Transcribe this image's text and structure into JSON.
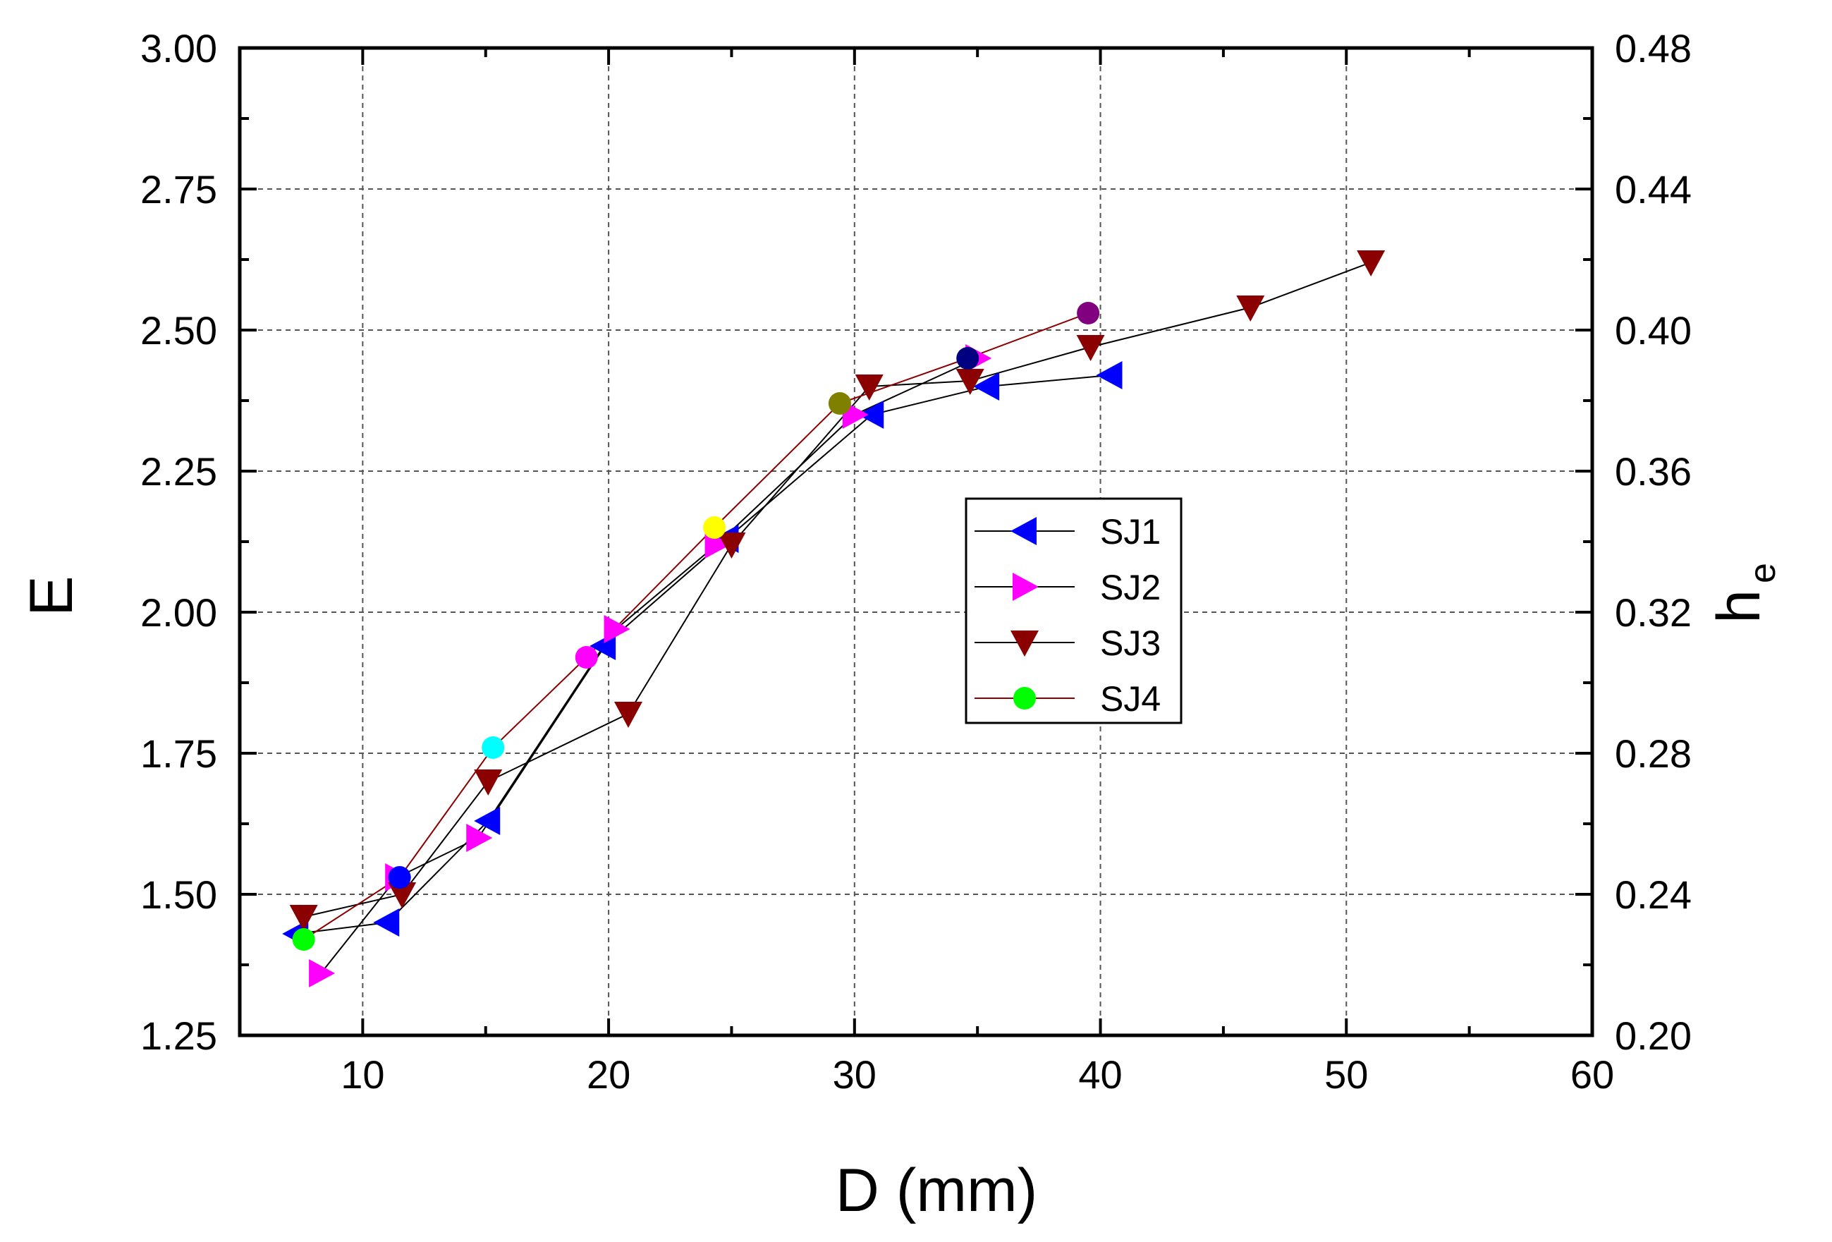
{
  "chart_data": {
    "type": "scatter",
    "xlabel": "D (mm)",
    "ylabel": "E",
    "y2label": {
      "main": "h",
      "sub": "e"
    },
    "xlim": [
      5,
      60
    ],
    "ylim": [
      1.25,
      3.0
    ],
    "y2lim": [
      0.2,
      0.48
    ],
    "x_ticks": [
      "10",
      "20",
      "30",
      "40",
      "50",
      "60"
    ],
    "y_ticks": [
      "1.25",
      "1.50",
      "1.75",
      "2.00",
      "2.25",
      "2.50",
      "2.75",
      "3.00"
    ],
    "y2_ticks": [
      "0.20",
      "0.24",
      "0.28",
      "0.32",
      "0.36",
      "0.40",
      "0.44",
      "0.48"
    ],
    "grid": true,
    "legend_position": "center-right",
    "series": [
      {
        "name": "SJ1",
        "marker": "triangle-left",
        "color": "#0000ff",
        "line_color": "#000000",
        "x": [
          7.3,
          11.0,
          15.1,
          19.8,
          24.8,
          30.7,
          35.4,
          40.4
        ],
        "y": [
          1.43,
          1.45,
          1.63,
          1.94,
          2.13,
          2.35,
          2.4,
          2.42
        ]
      },
      {
        "name": "SJ2",
        "marker": "triangle-right",
        "color": "#ff00ff",
        "line_color": "#000000",
        "x": [
          8.3,
          11.4,
          14.7,
          20.3,
          24.4,
          30.0,
          35.0
        ],
        "y": [
          1.36,
          1.53,
          1.6,
          1.97,
          2.12,
          2.35,
          2.45
        ]
      },
      {
        "name": "SJ3",
        "marker": "triangle-down",
        "color": "#8b0000",
        "line_color": "#000000",
        "x": [
          7.6,
          11.6,
          15.1,
          20.8,
          25.0,
          30.6,
          34.7,
          39.6,
          46.1,
          51.0
        ],
        "y": [
          1.46,
          1.5,
          1.7,
          1.82,
          2.12,
          2.4,
          2.41,
          2.47,
          2.54,
          2.62
        ]
      },
      {
        "name": "SJ4",
        "marker": "circle",
        "color": "#00ff00",
        "line_color": "#8b0000",
        "x": [
          7.6,
          11.5,
          15.3,
          19.1,
          24.3,
          29.4,
          34.6,
          39.5
        ],
        "y": [
          1.42,
          1.53,
          1.76,
          1.92,
          2.15,
          2.37,
          2.45,
          2.53
        ],
        "point_colors": [
          "#00ff00",
          "#0000ff",
          "#00ffff",
          "#ff00ff",
          "#ffff00",
          "#808000",
          "#000080",
          "#800080"
        ]
      }
    ]
  }
}
